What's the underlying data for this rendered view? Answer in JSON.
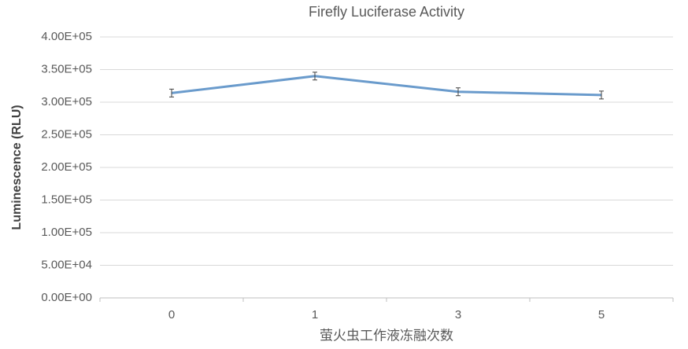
{
  "chart_data": {
    "type": "line",
    "title": "Firefly Luciferase Activity",
    "x_label": "萤火虫工作液冻融次数",
    "y_label": "Luminescence (RLU)",
    "categories": [
      "0",
      "1",
      "3",
      "5"
    ],
    "values": [
      314000,
      340000,
      316000,
      311000
    ],
    "errors": [
      6000,
      6000,
      6000,
      6000
    ],
    "color": "#6a9bcc",
    "ylim": [
      0,
      400000
    ],
    "yticks": [
      {
        "value": 0,
        "label": "0.00E+00"
      },
      {
        "value": 50000,
        "label": "5.00E+04"
      },
      {
        "value": 100000,
        "label": "1.00E+05"
      },
      {
        "value": 150000,
        "label": "1.50E+05"
      },
      {
        "value": 200000,
        "label": "2.00E+05"
      },
      {
        "value": 250000,
        "label": "2.50E+05"
      },
      {
        "value": 300000,
        "label": "3.00E+05"
      },
      {
        "value": 350000,
        "label": "3.50E+05"
      },
      {
        "value": 400000,
        "label": "4.00E+05"
      }
    ],
    "grid": true
  }
}
